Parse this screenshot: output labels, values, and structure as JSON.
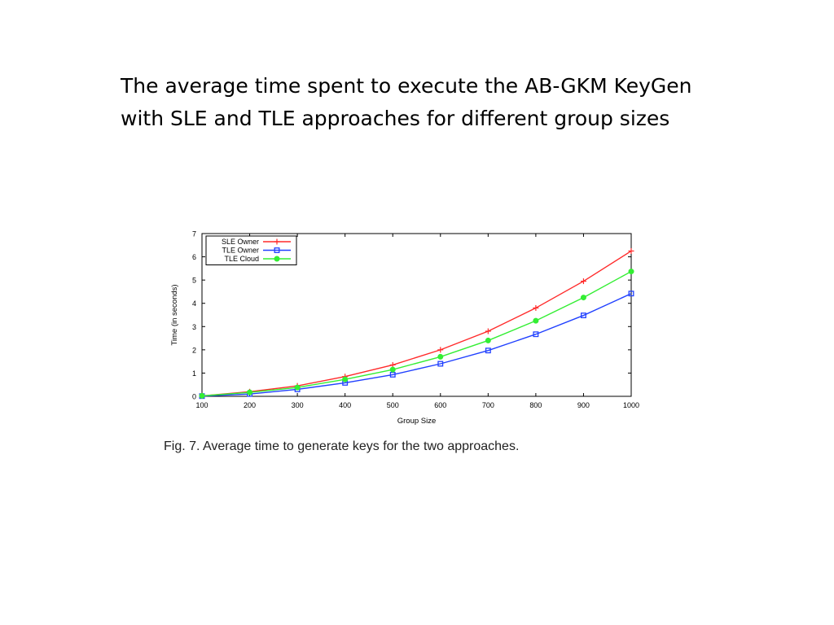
{
  "slide": {
    "title_line1": "The average time spent to execute the AB-GKM KeyGen",
    "title_line2": "with SLE and TLE approaches for different group sizes"
  },
  "figure": {
    "caption": "Fig. 7. Average time to generate keys for the two approaches."
  },
  "chart_data": {
    "type": "line",
    "title": "",
    "xlabel": "Group Size",
    "ylabel": "Time (in seconds)",
    "xlim": [
      100,
      1000
    ],
    "ylim": [
      0,
      7
    ],
    "x": [
      100,
      200,
      300,
      400,
      500,
      600,
      700,
      800,
      900,
      1000
    ],
    "x_ticks": [
      "100",
      "200",
      "300",
      "400",
      "500",
      "600",
      "700",
      "800",
      "900",
      "1000"
    ],
    "y_ticks": [
      "0",
      "1",
      "2",
      "3",
      "4",
      "5",
      "6",
      "7"
    ],
    "grid": false,
    "legend_position": "top-left",
    "series": [
      {
        "name": "SLE Owner",
        "color": "#ff2a2a",
        "marker": "plus",
        "values": [
          0.02,
          0.2,
          0.45,
          0.85,
          1.35,
          2.0,
          2.8,
          3.8,
          4.95,
          6.25
        ]
      },
      {
        "name": "TLE Owner",
        "color": "#2040ff",
        "marker": "square",
        "values": [
          0.01,
          0.1,
          0.3,
          0.58,
          0.93,
          1.4,
          1.97,
          2.67,
          3.48,
          4.42
        ]
      },
      {
        "name": "TLE Cloud",
        "color": "#33ee33",
        "marker": "circle",
        "values": [
          0.02,
          0.17,
          0.38,
          0.73,
          1.15,
          1.7,
          2.4,
          3.25,
          4.25,
          5.37
        ]
      }
    ]
  }
}
